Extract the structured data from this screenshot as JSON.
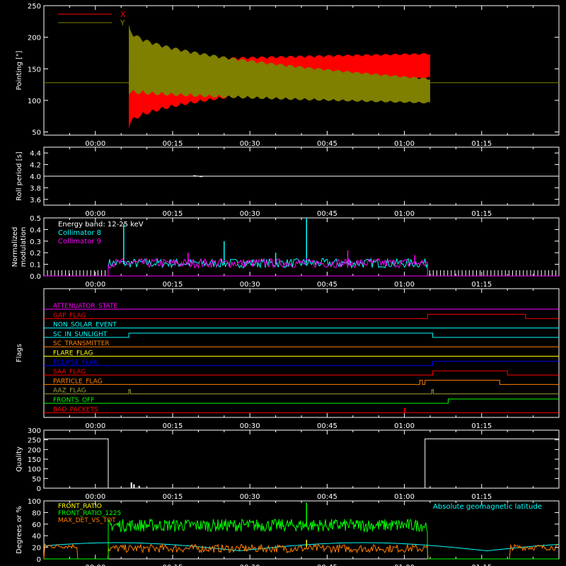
{
  "colors": {
    "bg": "#000000",
    "axis": "#ffffff",
    "red": "#ff0000",
    "olive": "#7f7f00",
    "cyan": "#00ffff",
    "magenta": "#ff00ff",
    "green": "#00ff00",
    "orange": "#ff7f00",
    "yellow": "#ffff00",
    "blue": "#0000ff",
    "olive_flag": "#9f9f3f",
    "white": "#ffffff"
  },
  "time_ticks": [
    "00:00",
    "00:15",
    "00:30",
    "00:45",
    "01:00",
    "01:15"
  ],
  "time_tick_minutes": [
    0,
    15,
    30,
    45,
    60,
    75
  ],
  "time_range_min": [
    -10,
    90
  ],
  "chart_data": [
    {
      "type": "area",
      "id": "pointing",
      "ylabel": "Pointing [\"]",
      "ylim": [
        45,
        250
      ],
      "yticks": [
        50,
        100,
        150,
        200,
        250
      ],
      "baseline": 128,
      "data_window_min": [
        6.5,
        65
      ],
      "legend": [
        "X",
        "Y"
      ],
      "series": [
        {
          "name": "X",
          "color": "red",
          "center_start": 110,
          "center_end": 155,
          "amp_start": 55,
          "amp_end": 20
        },
        {
          "name": "Y",
          "color": "olive",
          "center_start": 165,
          "center_end": 115,
          "amp_start": 55,
          "amp_end": 20
        }
      ]
    },
    {
      "type": "line",
      "id": "roll",
      "ylabel": "Roll period [s]",
      "ylim": [
        3.5,
        4.5
      ],
      "yticks": [
        3.6,
        3.8,
        4.0,
        4.2,
        4.4
      ],
      "value": 4.0,
      "x": [
        -10,
        90
      ],
      "y": [
        4.0,
        4.0
      ]
    },
    {
      "type": "line",
      "id": "modulation",
      "ylabel": "Normalized modulation",
      "ylim": [
        0,
        0.5
      ],
      "yticks": [
        0.0,
        0.1,
        0.2,
        0.3,
        0.4,
        0.5
      ],
      "legend": [
        "Energy band: 12-25 keV",
        "Collimator 8",
        "Collimator 9"
      ],
      "data_window_min": [
        2.5,
        64.5
      ],
      "series": [
        {
          "name": "Collimator 8",
          "color": "cyan",
          "level": 0.1,
          "spikes": [
            [
              5.5,
              0.45
            ],
            [
              25,
              0.3
            ],
            [
              41,
              0.5
            ],
            [
              35,
              0.2
            ]
          ]
        },
        {
          "name": "Collimator 9",
          "color": "magenta",
          "level": 0.1,
          "spikes": [
            [
              18,
              0.2
            ],
            [
              49,
              0.22
            ],
            [
              62,
              0.18
            ]
          ]
        }
      ]
    },
    {
      "type": "line",
      "id": "flags",
      "ylabel": "Flags",
      "flags": [
        {
          "name": "ATTENUATOR_STATE",
          "color": "magenta",
          "steps": []
        },
        {
          "name": "GAP_FLAG",
          "color": "red",
          "steps": [
            [
              64.5,
              1
            ],
            [
              83.5,
              0
            ]
          ]
        },
        {
          "name": "NON_SOLAR_EVENT",
          "color": "cyan",
          "steps": []
        },
        {
          "name": "SC_IN_SUNLIGHT",
          "color": "cyan",
          "steps": [
            [
              6.5,
              1
            ],
            [
              65.5,
              0
            ]
          ]
        },
        {
          "name": "SC_TRANSMITTER",
          "color": "orange",
          "steps": []
        },
        {
          "name": "FLARE_FLAG",
          "color": "yellow",
          "steps": []
        },
        {
          "name": "ECLIPSE_FLAG",
          "color": "blue",
          "steps": [
            [
              6.5,
              0
            ],
            [
              65.5,
              1
            ]
          ]
        },
        {
          "name": "SAA_FLAG",
          "color": "red",
          "steps": [
            [
              65.5,
              1
            ],
            [
              80,
              0
            ]
          ]
        },
        {
          "name": "PARTICLE_FLAG",
          "color": "orange",
          "steps": [
            [
              63,
              1
            ],
            [
              63.5,
              0
            ],
            [
              64,
              1
            ],
            [
              78.5,
              0
            ]
          ]
        },
        {
          "name": "AAZ_FLAG",
          "color": "olive_flag",
          "steps": [
            [
              6.5,
              1
            ],
            [
              6.8,
              0
            ],
            [
              65.3,
              1
            ],
            [
              65.6,
              0
            ]
          ]
        },
        {
          "name": "FRONTS_OFF",
          "color": "green",
          "steps": [
            [
              2.5,
              0
            ],
            [
              68.5,
              1
            ]
          ]
        },
        {
          "name": "BAD_PACKETS",
          "color": "red",
          "steps": [
            [
              60,
              1
            ],
            [
              60.2,
              0
            ]
          ]
        }
      ]
    },
    {
      "type": "line",
      "id": "quality",
      "ylabel": "Quality",
      "ylim": [
        0,
        300
      ],
      "yticks": [
        0,
        50,
        100,
        150,
        200,
        250,
        300
      ],
      "x": [
        -10,
        2.5,
        2.5,
        64,
        64,
        90
      ],
      "y": [
        255,
        255,
        0,
        0,
        255,
        255
      ]
    },
    {
      "type": "line",
      "id": "ratios",
      "ylabel": "Degrees or %",
      "ylim": [
        0,
        100
      ],
      "yticks": [
        0,
        20,
        40,
        60,
        80,
        100
      ],
      "legend": [
        "FRONT_RATIO",
        "FRONT_RATIO_1225",
        "MAX_DET_VS_TOT"
      ],
      "annotation": "Absolute geomagnetic latitude",
      "data_window_min": [
        2.5,
        64.5
      ],
      "series": [
        {
          "name": "FRONT_RATIO",
          "color": "yellow",
          "level": 62
        },
        {
          "name": "FRONT_RATIO_1225",
          "color": "green",
          "level": 58
        },
        {
          "name": "MAX_DET_VS_TOT",
          "color": "orange",
          "level": 18
        },
        {
          "name": "Absolute geomagnetic latitude",
          "color": "cyan",
          "level": 25
        }
      ]
    }
  ]
}
